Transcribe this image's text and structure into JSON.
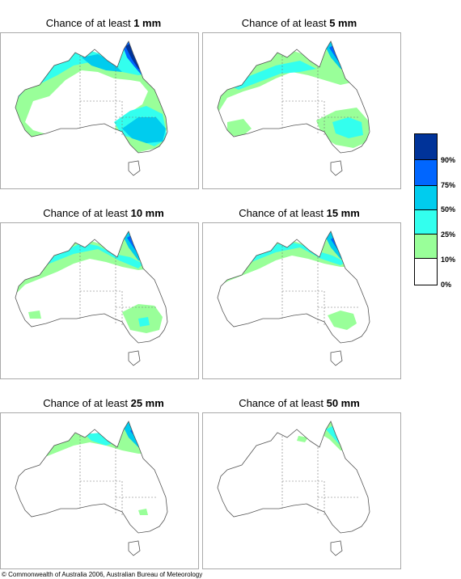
{
  "panels": [
    {
      "prefix": "Chance of at least",
      "amount": "1 mm"
    },
    {
      "prefix": "Chance of at least",
      "amount": "5 mm"
    },
    {
      "prefix": "Chance of at least",
      "amount": "10 mm"
    },
    {
      "prefix": "Chance of at least",
      "amount": "15 mm"
    },
    {
      "prefix": "Chance of at least",
      "amount": "25 mm"
    },
    {
      "prefix": "Chance of at least",
      "amount": "50 mm"
    }
  ],
  "legend": {
    "classes": [
      {
        "color": "#003399",
        "label": "90%"
      },
      {
        "color": "#0066ff",
        "label": "75%"
      },
      {
        "color": "#00ccee",
        "label": "50%"
      },
      {
        "color": "#33ffee",
        "label": "25%"
      },
      {
        "color": "#99ff99",
        "label": "10%"
      },
      {
        "color": "#ffffff",
        "label": "0%"
      }
    ]
  },
  "copyright": "© Commonwealth of Australia 2006, Australian Bureau of Meteorology"
}
